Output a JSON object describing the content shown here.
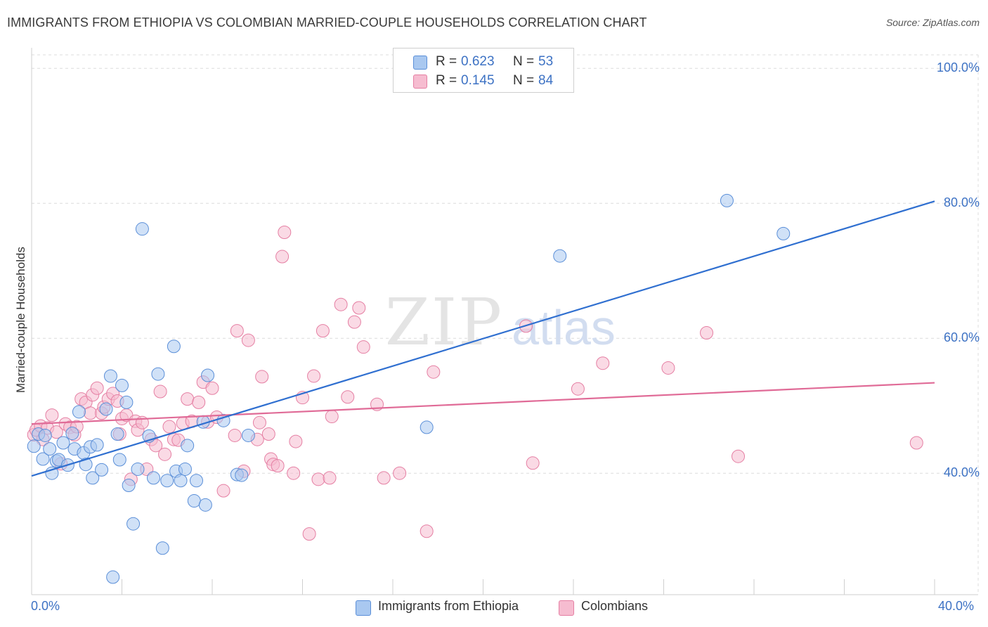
{
  "title": "IMMIGRANTS FROM ETHIOPIA VS COLOMBIAN MARRIED-COUPLE HOUSEHOLDS CORRELATION CHART",
  "source": "Source: ZipAtlas.com",
  "watermark_zip": "ZIP",
  "watermark_atlas": "atlas",
  "colors": {
    "blue_fill": "#a9c8f0",
    "blue_stroke": "#5b8fd8",
    "blue_line": "#2f6fd0",
    "pink_fill": "#f6bcd0",
    "pink_stroke": "#e57fa3",
    "pink_line": "#e06b97",
    "tick_text": "#3d72c4"
  },
  "legend": {
    "rows": [
      {
        "r_label": "R =",
        "r_value": "0.623",
        "n_label": "N =",
        "n_value": "53"
      },
      {
        "r_label": "R =",
        "r_value": "0.145",
        "n_label": "N =",
        "n_value": "84"
      }
    ]
  },
  "bottom_legend": {
    "series1": "Immigrants from Ethiopia",
    "series2": "Colombians"
  },
  "chart_data": {
    "type": "scatter",
    "title": "IMMIGRANTS FROM ETHIOPIA VS COLOMBIAN MARRIED-COUPLE HOUSEHOLDS CORRELATION CHART",
    "xlabel": "",
    "ylabel": "Married-couple Households",
    "xlim": [
      0,
      40
    ],
    "ylim": [
      22,
      102
    ],
    "x_tick_labels": [
      "0.0%",
      "40.0%"
    ],
    "y_ticks": [
      40,
      60,
      80,
      100
    ],
    "y_tick_labels": [
      "40.0%",
      "60.0%",
      "80.0%",
      "100.0%"
    ],
    "grid": true,
    "series": [
      {
        "name": "Immigrants from Ethiopia",
        "color": "blue",
        "trend": {
          "x": [
            0,
            40
          ],
          "y": [
            39.6,
            80.3
          ]
        },
        "points": [
          [
            0.1,
            44.0
          ],
          [
            0.3,
            45.8
          ],
          [
            0.5,
            42.1
          ],
          [
            0.6,
            45.6
          ],
          [
            0.8,
            43.6
          ],
          [
            0.9,
            40.0
          ],
          [
            1.1,
            41.8
          ],
          [
            1.2,
            42.0
          ],
          [
            1.4,
            44.5
          ],
          [
            1.6,
            41.2
          ],
          [
            1.8,
            45.9
          ],
          [
            1.9,
            43.6
          ],
          [
            2.1,
            49.1
          ],
          [
            2.3,
            43.0
          ],
          [
            2.4,
            41.3
          ],
          [
            2.6,
            43.9
          ],
          [
            2.7,
            39.3
          ],
          [
            2.9,
            44.2
          ],
          [
            3.1,
            40.5
          ],
          [
            3.3,
            49.5
          ],
          [
            3.5,
            54.4
          ],
          [
            3.8,
            45.8
          ],
          [
            3.9,
            42.0
          ],
          [
            4.0,
            53.0
          ],
          [
            4.2,
            50.5
          ],
          [
            4.3,
            38.2
          ],
          [
            4.5,
            32.5
          ],
          [
            4.7,
            40.6
          ],
          [
            4.9,
            76.2
          ],
          [
            5.2,
            45.5
          ],
          [
            5.4,
            39.3
          ],
          [
            5.6,
            54.7
          ],
          [
            5.8,
            28.9
          ],
          [
            6.0,
            38.9
          ],
          [
            6.3,
            58.8
          ],
          [
            6.4,
            40.3
          ],
          [
            6.6,
            38.9
          ],
          [
            6.8,
            40.6
          ],
          [
            6.9,
            44.1
          ],
          [
            7.2,
            35.9
          ],
          [
            7.3,
            38.9
          ],
          [
            7.6,
            47.6
          ],
          [
            7.7,
            35.3
          ],
          [
            7.8,
            54.5
          ],
          [
            8.5,
            47.8
          ],
          [
            9.1,
            39.8
          ],
          [
            9.3,
            39.7
          ],
          [
            9.6,
            45.6
          ],
          [
            3.6,
            24.6
          ],
          [
            17.5,
            46.8
          ],
          [
            23.4,
            72.2
          ],
          [
            30.8,
            80.4
          ],
          [
            33.3,
            75.5
          ]
        ]
      },
      {
        "name": "Colombians",
        "color": "pink",
        "trend": {
          "x": [
            0,
            40
          ],
          "y": [
            47.3,
            53.4
          ]
        },
        "points": [
          [
            0.1,
            45.7
          ],
          [
            0.2,
            46.4
          ],
          [
            0.4,
            47.0
          ],
          [
            0.5,
            45.0
          ],
          [
            0.7,
            46.7
          ],
          [
            0.9,
            48.6
          ],
          [
            1.1,
            46.1
          ],
          [
            1.3,
            41.4
          ],
          [
            1.5,
            47.3
          ],
          [
            1.7,
            46.8
          ],
          [
            1.9,
            45.7
          ],
          [
            2.0,
            46.9
          ],
          [
            2.2,
            51.0
          ],
          [
            2.4,
            50.5
          ],
          [
            2.6,
            48.9
          ],
          [
            2.7,
            51.6
          ],
          [
            2.9,
            52.6
          ],
          [
            3.1,
            48.9
          ],
          [
            3.2,
            49.8
          ],
          [
            3.4,
            51.0
          ],
          [
            3.6,
            51.8
          ],
          [
            3.8,
            50.7
          ],
          [
            3.9,
            45.8
          ],
          [
            4.0,
            48.1
          ],
          [
            4.2,
            48.6
          ],
          [
            4.4,
            39.1
          ],
          [
            4.6,
            47.7
          ],
          [
            4.7,
            46.4
          ],
          [
            4.9,
            47.5
          ],
          [
            5.1,
            40.6
          ],
          [
            5.3,
            45.0
          ],
          [
            5.5,
            44.1
          ],
          [
            5.7,
            52.1
          ],
          [
            5.9,
            42.8
          ],
          [
            6.1,
            46.9
          ],
          [
            6.3,
            45.0
          ],
          [
            6.5,
            44.9
          ],
          [
            6.7,
            47.4
          ],
          [
            6.9,
            51.0
          ],
          [
            7.1,
            47.7
          ],
          [
            7.4,
            50.5
          ],
          [
            7.6,
            53.5
          ],
          [
            7.8,
            47.6
          ],
          [
            8.0,
            52.6
          ],
          [
            8.2,
            48.3
          ],
          [
            8.5,
            37.4
          ],
          [
            9.0,
            45.6
          ],
          [
            9.1,
            61.1
          ],
          [
            9.4,
            40.3
          ],
          [
            9.6,
            59.7
          ],
          [
            10.0,
            45.0
          ],
          [
            10.1,
            47.5
          ],
          [
            10.2,
            54.3
          ],
          [
            10.5,
            45.8
          ],
          [
            10.6,
            42.1
          ],
          [
            10.7,
            41.3
          ],
          [
            10.9,
            41.1
          ],
          [
            11.1,
            72.1
          ],
          [
            11.2,
            75.7
          ],
          [
            11.6,
            40.0
          ],
          [
            11.7,
            44.7
          ],
          [
            12.0,
            51.2
          ],
          [
            12.3,
            31.0
          ],
          [
            12.5,
            54.4
          ],
          [
            12.7,
            39.1
          ],
          [
            12.9,
            61.1
          ],
          [
            13.2,
            39.3
          ],
          [
            13.3,
            48.4
          ],
          [
            13.7,
            65.0
          ],
          [
            14.0,
            51.3
          ],
          [
            14.3,
            62.4
          ],
          [
            14.5,
            64.5
          ],
          [
            14.7,
            58.7
          ],
          [
            15.3,
            50.2
          ],
          [
            15.6,
            39.3
          ],
          [
            16.3,
            40.0
          ],
          [
            17.5,
            31.4
          ],
          [
            17.8,
            55.0
          ],
          [
            21.9,
            61.8
          ],
          [
            22.2,
            41.5
          ],
          [
            24.2,
            52.5
          ],
          [
            25.3,
            56.3
          ],
          [
            28.2,
            55.6
          ],
          [
            29.9,
            60.8
          ],
          [
            31.3,
            42.5
          ],
          [
            39.2,
            44.5
          ]
        ]
      }
    ]
  }
}
